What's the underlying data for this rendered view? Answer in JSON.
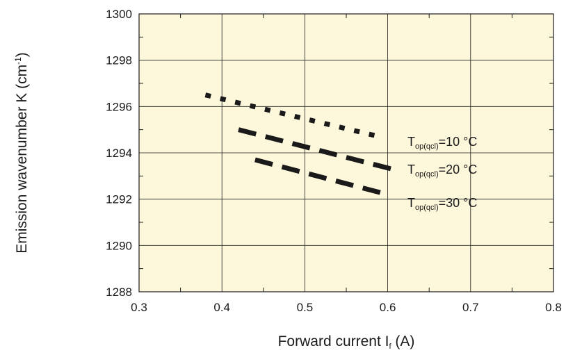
{
  "chart_data": {
    "type": "line",
    "xlabel": {
      "main": "Forward current I",
      "sub": "f",
      "after": " (A)"
    },
    "ylabel": {
      "main": "Emission wavenumber K (cm",
      "sup": "-1",
      "after": ")"
    },
    "xlim": [
      0.3,
      0.8
    ],
    "ylim": [
      1288,
      1300
    ],
    "x_ticks": [
      "0.3",
      "0.4",
      "0.5",
      "0.6",
      "0.7",
      "0.8"
    ],
    "y_ticks": [
      "1288",
      "1290",
      "1292",
      "1294",
      "1296",
      "1298",
      "1300"
    ],
    "grid": true,
    "colors": {
      "background": "#fdf8dc",
      "line": "#1a1a1a",
      "grid": "#1a1a1a"
    },
    "series": [
      {
        "label": {
          "main": "T",
          "sub": "op(qcl)",
          "after": "=10 °C"
        },
        "dash": "dotted",
        "x": [
          0.38,
          0.59
        ],
        "y": [
          1296.5,
          1294.7
        ]
      },
      {
        "label": {
          "main": "T",
          "sub": "op(qcl)",
          "after": "=20 °C"
        },
        "dash": "dashed",
        "x": [
          0.42,
          0.605
        ],
        "y": [
          1295.0,
          1293.3
        ]
      },
      {
        "label": {
          "main": "T",
          "sub": "op(qcl)",
          "after": "=30 °C"
        },
        "dash": "dashed",
        "x": [
          0.44,
          0.6
        ],
        "y": [
          1293.7,
          1292.2
        ]
      }
    ]
  }
}
